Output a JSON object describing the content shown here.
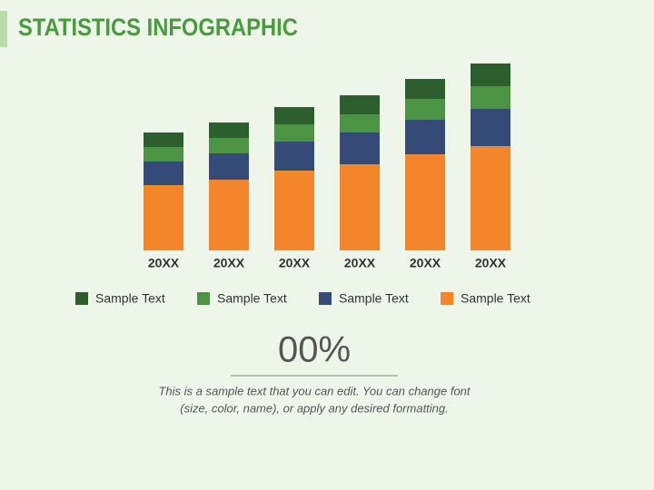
{
  "header": {
    "title": "STATISTICS INFOGRAPHIC"
  },
  "chart_data": {
    "type": "stacked_bar",
    "categories": [
      "20XX",
      "20XX",
      "20XX",
      "20XX",
      "20XX",
      "20XX"
    ],
    "series": [
      {
        "name": "Sample Text",
        "color": "#2d5e2e",
        "values": [
          16,
          17,
          19,
          21,
          22,
          25
        ]
      },
      {
        "name": "Sample Text",
        "color": "#4a9444",
        "values": [
          16,
          17,
          19,
          20,
          23,
          25
        ]
      },
      {
        "name": "Sample Text",
        "color": "#364a78",
        "values": [
          26,
          29,
          32,
          35,
          38,
          41
        ]
      },
      {
        "name": "Sample Text",
        "color": "#f5852a",
        "values": [
          72,
          78,
          88,
          95,
          106,
          115
        ]
      }
    ],
    "ylim": [
      0,
      210
    ]
  },
  "stat": {
    "value": "00%",
    "lines": [
      "This is a sample text that you can edit. You can change font",
      "(size, color, name), or apply any desired formatting."
    ]
  }
}
